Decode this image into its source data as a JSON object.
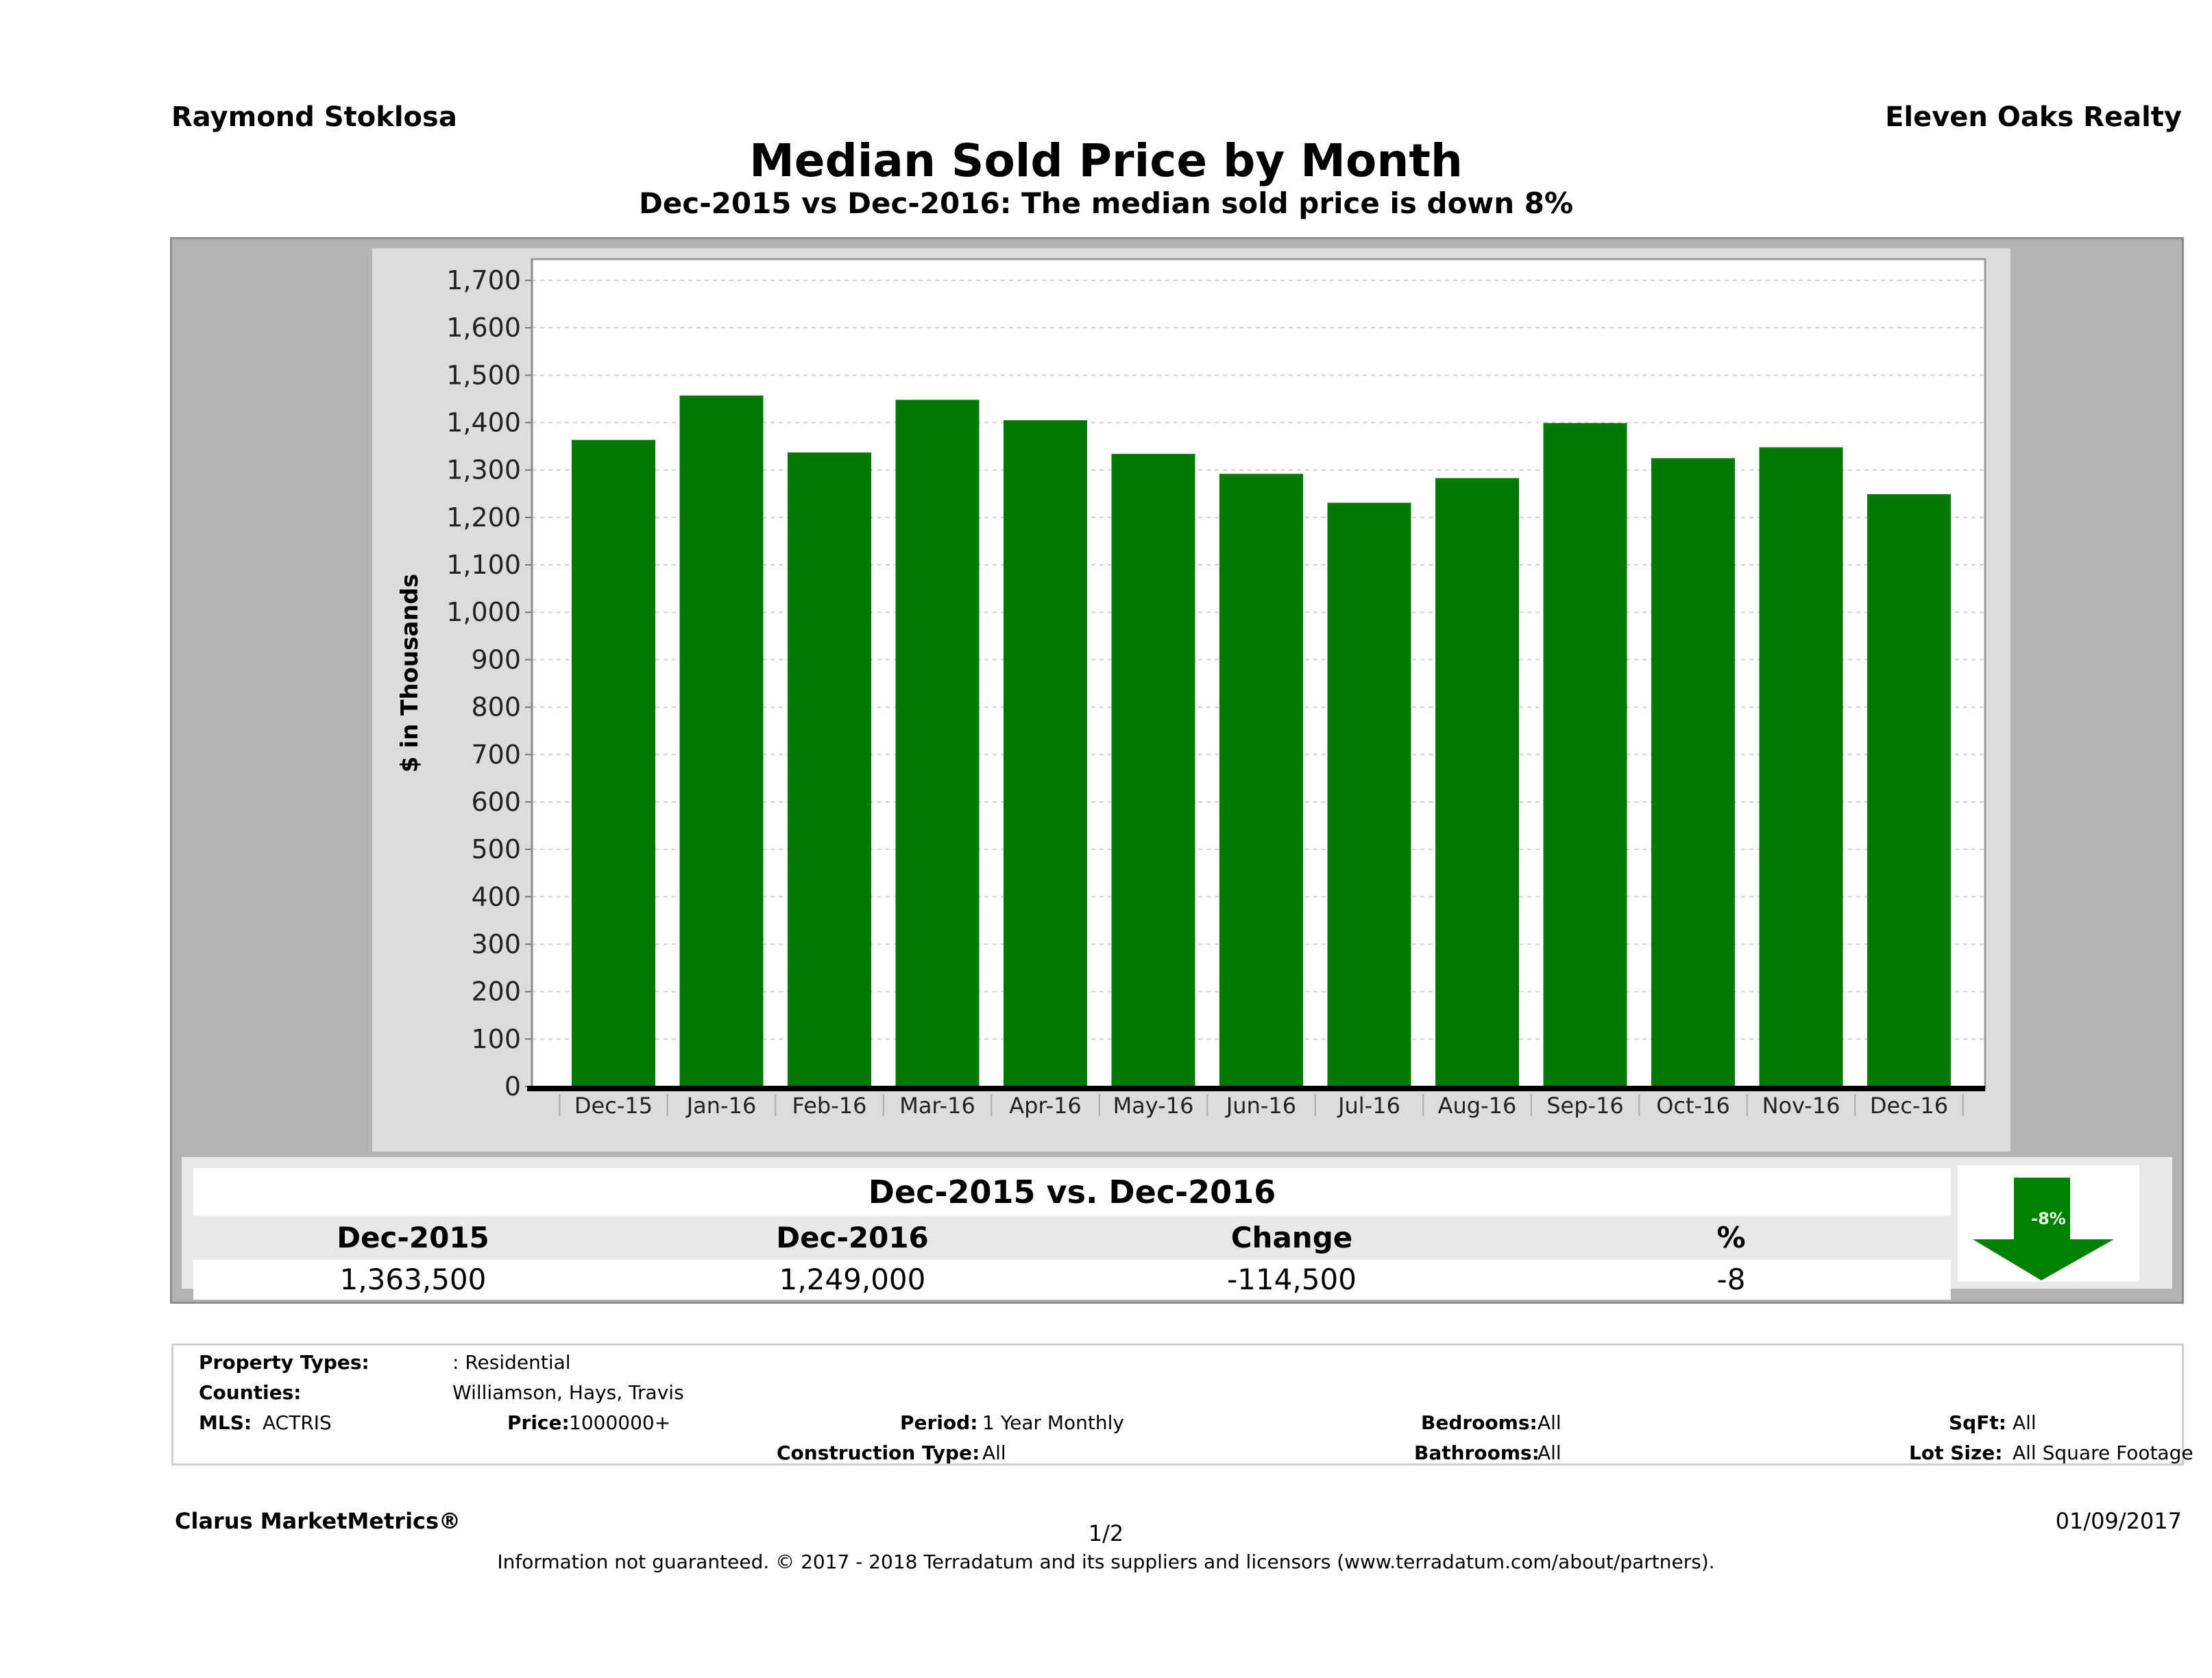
{
  "header": {
    "agent_name": "Raymond Stoklosa",
    "brokerage": "Eleven Oaks Realty",
    "title": "Median Sold Price by Month",
    "subtitle": "Dec-2015 vs Dec-2016: The median sold price is down 8%"
  },
  "colors": {
    "bar": "#007a00",
    "frame": "#b3b3b3",
    "panel": "#dcdcdc",
    "plot_bg": "#ffffff",
    "arrow": "#008000"
  },
  "chart_data": {
    "type": "bar",
    "title": "Median Sold Price by Month",
    "xlabel": "",
    "ylabel": "$ in Thousands",
    "ylim": [
      0,
      1700
    ],
    "yticks": [
      0,
      100,
      200,
      300,
      400,
      500,
      600,
      700,
      800,
      900,
      1000,
      1100,
      1200,
      1300,
      1400,
      1500,
      1600,
      1700
    ],
    "ytick_labels": [
      "0",
      "100",
      "200",
      "300",
      "400",
      "500",
      "600",
      "700",
      "800",
      "900",
      "1,000",
      "1,100",
      "1,200",
      "1,300",
      "1,400",
      "1,500",
      "1,600",
      "1,700"
    ],
    "grid": true,
    "categories": [
      "Dec-15",
      "Jan-16",
      "Feb-16",
      "Mar-16",
      "Apr-16",
      "May-16",
      "Jun-16",
      "Jul-16",
      "Aug-16",
      "Sep-16",
      "Oct-16",
      "Nov-16",
      "Dec-16"
    ],
    "values": [
      1363.5,
      1457,
      1337,
      1448,
      1405,
      1334,
      1292,
      1231,
      1283,
      1399,
      1325,
      1348,
      1249
    ]
  },
  "summary": {
    "title": "Dec-2015 vs. Dec-2016",
    "headers": [
      "Dec-2015",
      "Dec-2016",
      "Change",
      "%"
    ],
    "values": [
      "1,363,500",
      "1,249,000",
      "-114,500",
      "-8"
    ],
    "arrow_label": "-8%",
    "arrow_icon": "down-arrow-icon"
  },
  "info": {
    "property_types_label": "Property Types:",
    "property_types_value": ": Residential",
    "counties_label": "Counties:",
    "counties_value": "Williamson, Hays, Travis",
    "mls_label": "MLS:",
    "mls_value": "ACTRIS",
    "price_label": "Price:",
    "price_value": "1000000+",
    "period_label": "Period:",
    "period_value": "1 Year Monthly",
    "construction_label": "Construction Type:",
    "construction_value": "All",
    "bedrooms_label": "Bedrooms:",
    "bedrooms_value": "All",
    "bathrooms_label": "Bathrooms:",
    "bathrooms_value": "All",
    "sqft_label": "SqFt:",
    "sqft_value": "All",
    "lotsize_label": "Lot Size:",
    "lotsize_value": "All Square Footage"
  },
  "footer": {
    "brand": "Clarus MarketMetrics®",
    "page": "1/2",
    "date": "01/09/2017",
    "legal": "Information not guaranteed. © 2017 - 2018 Terradatum and its suppliers and licensors (www.terradatum.com/about/partners)."
  }
}
